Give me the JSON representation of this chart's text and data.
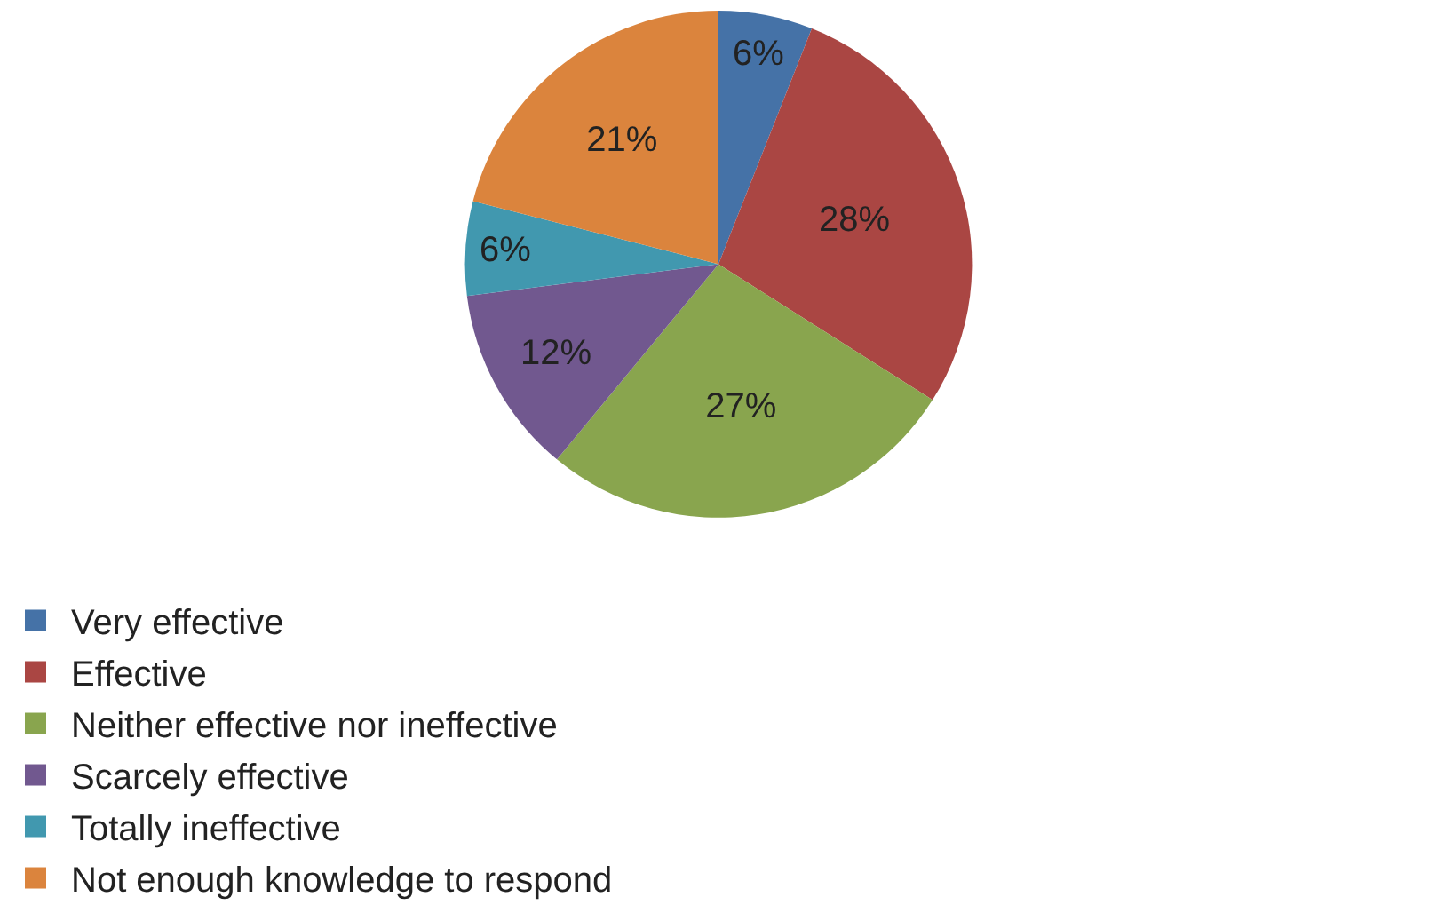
{
  "chart_data": {
    "type": "pie",
    "categories": [
      "Very effective",
      "Effective",
      "Neither effective nor ineffective",
      "Scarcely effective",
      "Totally ineffective",
      "Not enough knowledge to respond"
    ],
    "values": [
      6,
      28,
      27,
      12,
      6,
      21
    ],
    "value_labels": [
      "6%",
      "28%",
      "27%",
      "12%",
      "6%",
      "21%"
    ],
    "colors": [
      "#4572a7",
      "#aa4643",
      "#89a54e",
      "#71588f",
      "#4198af",
      "#db843d"
    ],
    "legend": "bottom"
  }
}
